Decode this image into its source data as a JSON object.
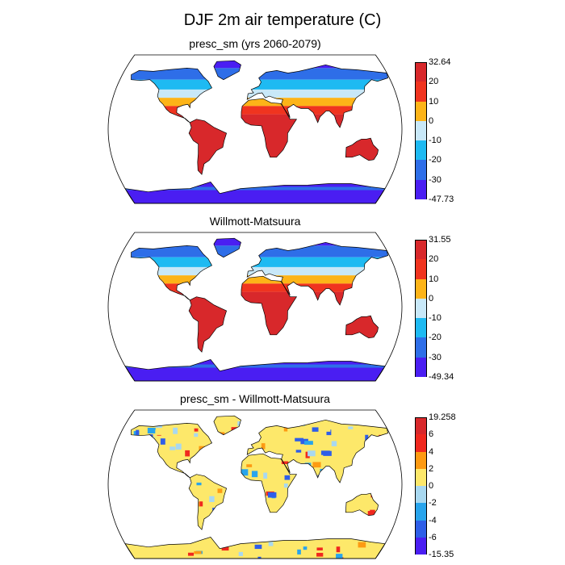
{
  "title": "DJF 2m air temperature (C)",
  "panels": [
    {
      "title": "presc_sm (yrs 2060-2079)",
      "colorbar": {
        "labels": [
          "32.64",
          "20",
          "10",
          "0",
          "-10",
          "-20",
          "-30",
          "-47.73"
        ],
        "colors": [
          "#d8282b",
          "#f0341f",
          "#fdb418",
          "#c8e8f8",
          "#1ebaf2",
          "#2e6ee8",
          "#4a1ef2"
        ]
      }
    },
    {
      "title": "Willmott-Matsuura",
      "colorbar": {
        "labels": [
          "31.55",
          "20",
          "10",
          "0",
          "-10",
          "-20",
          "-30",
          "-49.34"
        ],
        "colors": [
          "#d8282b",
          "#f0341f",
          "#fdb418",
          "#c8e8f8",
          "#1ebaf2",
          "#2e6ee8",
          "#4a1ef2"
        ]
      }
    },
    {
      "title": "presc_sm - Willmott-Matsuura",
      "colorbar": {
        "labels": [
          "19.258",
          "6",
          "4",
          "2",
          "0",
          "-2",
          "-4",
          "-6",
          "-15.35"
        ],
        "colors": [
          "#d8282b",
          "#f0281e",
          "#fd9a12",
          "#fde86a",
          "#a8d8f0",
          "#28a4ec",
          "#2e5ee8",
          "#4a1ef2"
        ]
      }
    }
  ]
}
